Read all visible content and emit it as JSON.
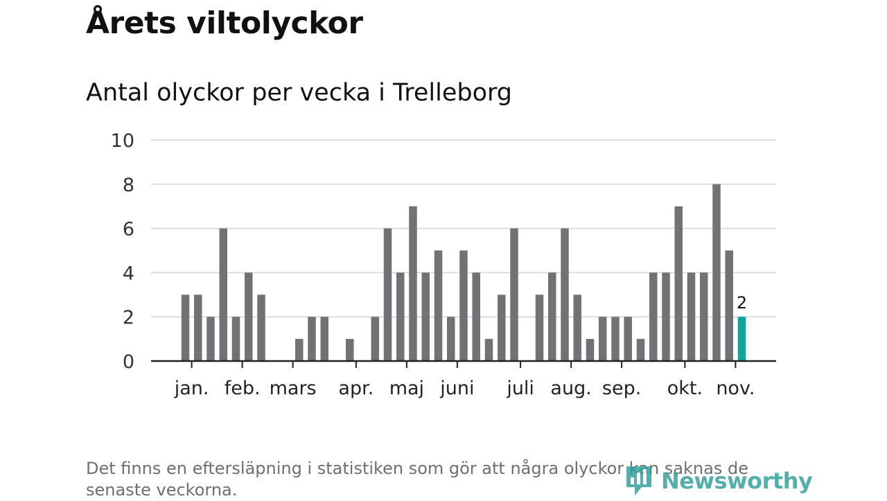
{
  "page": {
    "title": "Årets viltolyckor",
    "footnote": "Det finns en eftersläpning i statistiken som gör att några olyckor kan saknas de senaste veckorna.",
    "brand": "Newsworthy"
  },
  "colors": {
    "bar": "#727176",
    "highlight": "#0ea59c",
    "grid": "#dcdcdc",
    "axis": "#222222",
    "brand": "#2d9e9a"
  },
  "chart_data": {
    "type": "bar",
    "title": "Antal olyckor per vecka i Trelleborg",
    "xlabel": "",
    "ylabel": "",
    "ylim": [
      0,
      10
    ],
    "yticks": [
      0,
      2,
      4,
      6,
      8,
      10
    ],
    "grid": true,
    "week_start": 1,
    "values": [
      3,
      3,
      2,
      6,
      2,
      4,
      3,
      0,
      0,
      1,
      2,
      2,
      0,
      1,
      0,
      2,
      6,
      4,
      7,
      4,
      5,
      2,
      5,
      4,
      1,
      3,
      6,
      0,
      3,
      4,
      6,
      3,
      1,
      2,
      2,
      2,
      1,
      4,
      4,
      7,
      4,
      4,
      8,
      5,
      2
    ],
    "highlight_index": 44,
    "highlight_label": "2",
    "month_labels": [
      {
        "label": "jan.",
        "week": 1.5
      },
      {
        "label": "feb.",
        "week": 5.5
      },
      {
        "label": "mars",
        "week": 9.5
      },
      {
        "label": "apr.",
        "week": 14.5
      },
      {
        "label": "maj",
        "week": 18.5
      },
      {
        "label": "juni",
        "week": 22.5
      },
      {
        "label": "juli",
        "week": 27.5
      },
      {
        "label": "aug.",
        "week": 31.5
      },
      {
        "label": "sep.",
        "week": 35.5
      },
      {
        "label": "okt.",
        "week": 40.5
      },
      {
        "label": "nov.",
        "week": 44.5
      }
    ]
  }
}
